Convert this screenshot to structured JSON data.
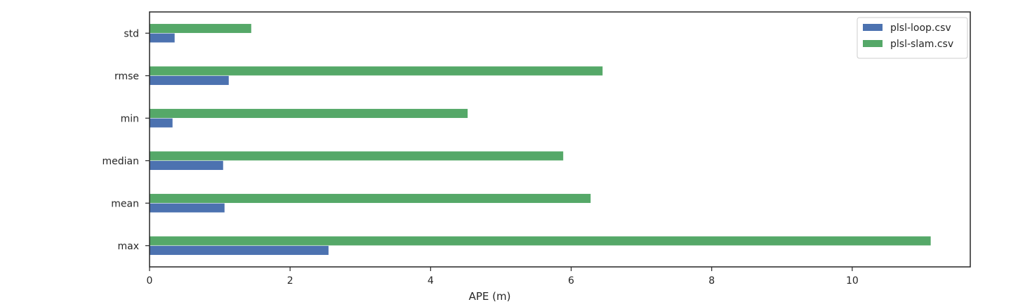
{
  "chart_data": {
    "type": "bar",
    "orientation": "horizontal",
    "categories": [
      "max",
      "mean",
      "median",
      "min",
      "rmse",
      "std"
    ],
    "series": [
      {
        "name": "plsl-loop.csv",
        "color": "#4c72b0",
        "values": [
          2.55,
          1.07,
          1.05,
          0.33,
          1.13,
          0.36
        ]
      },
      {
        "name": "plsl-slam.csv",
        "color": "#55a868",
        "values": [
          11.12,
          6.28,
          5.89,
          4.53,
          6.45,
          1.45
        ]
      }
    ],
    "xlabel": "APE (m)",
    "ylabel": "",
    "xlim": [
      0,
      11.68
    ],
    "xticks": [
      0,
      2,
      4,
      6,
      8,
      10
    ],
    "grid": false,
    "legend_position": "top-right"
  }
}
